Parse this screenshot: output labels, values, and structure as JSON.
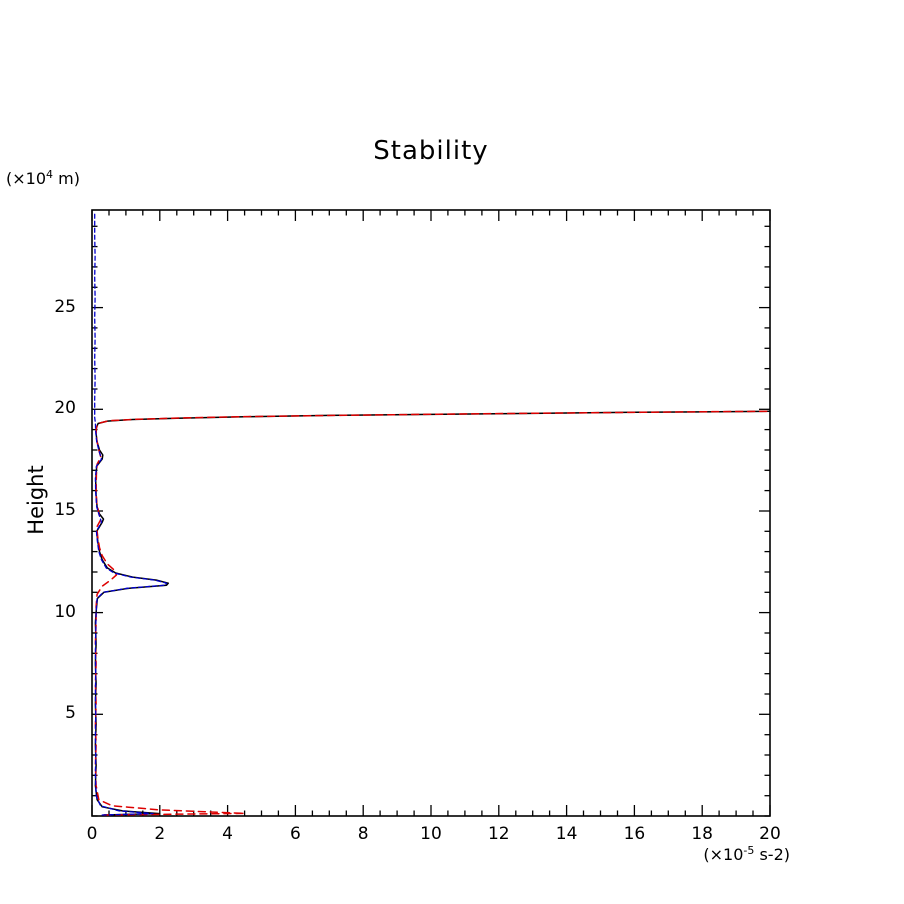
{
  "chart": {
    "title": "Stability",
    "y_axis_label": "Height",
    "y_unit": {
      "prefix": "(×10",
      "sup": "4",
      "suffix": " m)"
    },
    "x_unit": {
      "prefix": "(×10",
      "sup": "-5",
      "suffix": " s-2)"
    }
  },
  "chart_data": {
    "type": "line",
    "title": "Stability",
    "xlabel": "(×10^-5 s-2)",
    "ylabel": "Height (×10^4 m)",
    "xlim": [
      0,
      20
    ],
    "ylim": [
      0,
      29.8
    ],
    "x_major_ticks": [
      0,
      2,
      4,
      6,
      8,
      10,
      12,
      14,
      16,
      18,
      20
    ],
    "x_minor_step": 0.5,
    "y_major_ticks": [
      5,
      10,
      15,
      20,
      25
    ],
    "y_minor_step": 1,
    "grid": false,
    "legend": null,
    "frame_color": "#000000",
    "series": [
      {
        "name": "solid-black",
        "color": "#000000",
        "dash": "",
        "width": 1.5,
        "points": [
          [
            0.35,
            0.05
          ],
          [
            2.0,
            0.12
          ],
          [
            0.9,
            0.25
          ],
          [
            0.3,
            0.45
          ],
          [
            0.15,
            0.8
          ],
          [
            0.1,
            1.5
          ],
          [
            0.12,
            2.5
          ],
          [
            0.1,
            3.5
          ],
          [
            0.12,
            4.5
          ],
          [
            0.1,
            5.5
          ],
          [
            0.12,
            6.5
          ],
          [
            0.1,
            7.5
          ],
          [
            0.12,
            8.5
          ],
          [
            0.1,
            9.5
          ],
          [
            0.13,
            10.2
          ],
          [
            0.16,
            10.7
          ],
          [
            0.35,
            11.0
          ],
          [
            1.1,
            11.2
          ],
          [
            2.2,
            11.35
          ],
          [
            2.25,
            11.45
          ],
          [
            1.9,
            11.6
          ],
          [
            1.2,
            11.75
          ],
          [
            0.7,
            11.95
          ],
          [
            0.45,
            12.2
          ],
          [
            0.3,
            12.6
          ],
          [
            0.22,
            13.0
          ],
          [
            0.17,
            13.5
          ],
          [
            0.14,
            14.0
          ],
          [
            0.3,
            14.45
          ],
          [
            0.34,
            14.6
          ],
          [
            0.22,
            14.85
          ],
          [
            0.15,
            15.2
          ],
          [
            0.12,
            15.8
          ],
          [
            0.11,
            16.5
          ],
          [
            0.14,
            17.2
          ],
          [
            0.3,
            17.55
          ],
          [
            0.32,
            17.75
          ],
          [
            0.22,
            18.0
          ],
          [
            0.15,
            18.4
          ],
          [
            0.12,
            18.8
          ],
          [
            0.13,
            19.1
          ],
          [
            0.18,
            19.3
          ],
          [
            0.45,
            19.42
          ],
          [
            1.2,
            19.5
          ],
          [
            2.5,
            19.56
          ],
          [
            4.5,
            19.63
          ],
          [
            7.0,
            19.7
          ],
          [
            10.0,
            19.75
          ],
          [
            13.0,
            19.8
          ],
          [
            16.0,
            19.85
          ],
          [
            18.0,
            19.87
          ],
          [
            20.0,
            19.9
          ]
        ]
      },
      {
        "name": "dashed-red",
        "color": "#dd0000",
        "dash": "7,5",
        "width": 1.5,
        "points": [
          [
            0.35,
            0.05
          ],
          [
            4.5,
            0.13
          ],
          [
            2.0,
            0.3
          ],
          [
            0.6,
            0.5
          ],
          [
            0.2,
            0.8
          ],
          [
            0.12,
            1.5
          ],
          [
            0.1,
            2.5
          ],
          [
            0.12,
            3.5
          ],
          [
            0.1,
            4.5
          ],
          [
            0.12,
            5.5
          ],
          [
            0.1,
            6.5
          ],
          [
            0.12,
            7.5
          ],
          [
            0.1,
            8.5
          ],
          [
            0.12,
            9.5
          ],
          [
            0.12,
            10.3
          ],
          [
            0.15,
            10.9
          ],
          [
            0.3,
            11.3
          ],
          [
            0.55,
            11.6
          ],
          [
            0.72,
            11.85
          ],
          [
            0.65,
            12.1
          ],
          [
            0.45,
            12.4
          ],
          [
            0.3,
            12.8
          ],
          [
            0.22,
            13.2
          ],
          [
            0.17,
            13.7
          ],
          [
            0.14,
            14.2
          ],
          [
            0.25,
            14.55
          ],
          [
            0.2,
            14.9
          ],
          [
            0.14,
            15.4
          ],
          [
            0.12,
            16.0
          ],
          [
            0.13,
            16.8
          ],
          [
            0.15,
            17.3
          ],
          [
            0.26,
            17.65
          ],
          [
            0.2,
            18.0
          ],
          [
            0.14,
            18.5
          ],
          [
            0.12,
            19.0
          ],
          [
            0.17,
            19.3
          ],
          [
            0.5,
            19.44
          ],
          [
            1.3,
            19.51
          ],
          [
            2.6,
            19.57
          ],
          [
            4.6,
            19.64
          ],
          [
            7.2,
            19.7
          ],
          [
            10.2,
            19.76
          ],
          [
            13.2,
            19.81
          ],
          [
            16.2,
            19.85
          ],
          [
            18.2,
            19.88
          ],
          [
            20.0,
            19.9
          ]
        ]
      },
      {
        "name": "dashed-blue",
        "color": "#0000cc",
        "dash": "4,3",
        "width": 1.3,
        "points": [
          [
            0.3,
            0.05
          ],
          [
            1.8,
            0.12
          ],
          [
            0.8,
            0.25
          ],
          [
            0.25,
            0.5
          ],
          [
            0.12,
            1.0
          ],
          [
            0.1,
            2.0
          ],
          [
            0.11,
            3.0
          ],
          [
            0.1,
            4.0
          ],
          [
            0.11,
            5.0
          ],
          [
            0.1,
            6.0
          ],
          [
            0.11,
            7.0
          ],
          [
            0.1,
            8.0
          ],
          [
            0.11,
            9.0
          ],
          [
            0.12,
            10.0
          ],
          [
            0.15,
            10.7
          ],
          [
            0.33,
            11.0
          ],
          [
            1.05,
            11.2
          ],
          [
            2.15,
            11.35
          ],
          [
            2.2,
            11.45
          ],
          [
            1.85,
            11.6
          ],
          [
            1.15,
            11.75
          ],
          [
            0.65,
            11.95
          ],
          [
            0.42,
            12.2
          ],
          [
            0.28,
            12.6
          ],
          [
            0.2,
            13.0
          ],
          [
            0.16,
            13.5
          ],
          [
            0.13,
            14.0
          ],
          [
            0.28,
            14.45
          ],
          [
            0.2,
            14.85
          ],
          [
            0.14,
            15.2
          ],
          [
            0.11,
            15.9
          ],
          [
            0.1,
            16.6
          ],
          [
            0.13,
            17.2
          ],
          [
            0.28,
            17.55
          ],
          [
            0.2,
            18.0
          ],
          [
            0.14,
            18.4
          ],
          [
            0.11,
            18.9
          ],
          [
            0.1,
            19.3
          ],
          [
            0.08,
            19.6
          ],
          [
            0.08,
            20.5
          ],
          [
            0.09,
            21.5
          ],
          [
            0.08,
            22.5
          ],
          [
            0.09,
            23.5
          ],
          [
            0.08,
            24.5
          ],
          [
            0.09,
            25.5
          ],
          [
            0.08,
            26.5
          ],
          [
            0.09,
            27.5
          ],
          [
            0.08,
            28.5
          ],
          [
            0.08,
            29.6
          ]
        ]
      }
    ]
  }
}
